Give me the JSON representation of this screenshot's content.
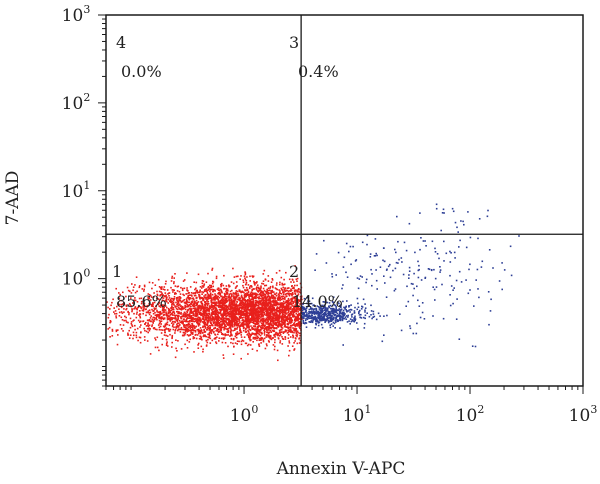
{
  "chart_data": {
    "type": "scatter",
    "title": "",
    "xlabel": "Annexin V-APC",
    "ylabel": "7-AAD",
    "x_scale": "log",
    "y_scale": "log",
    "xlim": [
      0.06,
      1000
    ],
    "ylim": [
      0.06,
      1000
    ],
    "x_ticks": [
      {
        "value": 1,
        "base": "10",
        "exp": "0"
      },
      {
        "value": 10,
        "base": "10",
        "exp": "1"
      },
      {
        "value": 100,
        "base": "10",
        "exp": "2"
      },
      {
        "value": 1000,
        "base": "10",
        "exp": "3"
      }
    ],
    "y_ticks": [
      {
        "value": 1,
        "base": "10",
        "exp": "0"
      },
      {
        "value": 10,
        "base": "10",
        "exp": "1"
      },
      {
        "value": 100,
        "base": "10",
        "exp": "2"
      },
      {
        "value": 1000,
        "base": "10",
        "exp": "3"
      }
    ],
    "gate": {
      "x": 3.2,
      "y": 3.2
    },
    "quadrants": [
      {
        "id": "4",
        "label": "4",
        "percent": "0.0%"
      },
      {
        "id": "3",
        "label": "3",
        "percent": "0.4%"
      },
      {
        "id": "1",
        "label": "1",
        "percent": "85.6%"
      },
      {
        "id": "2",
        "label": "2",
        "percent": "14.0%"
      }
    ],
    "populations": [
      {
        "quadrant": "1",
        "color": "#e8201c",
        "center": [
          1.2,
          0.42
        ],
        "spread": [
          0.55,
          0.16
        ],
        "share": 0.856
      },
      {
        "quadrant": "2",
        "color": "#2e3f96",
        "center": [
          4.4,
          0.4
        ],
        "spread": [
          0.2,
          0.06
        ],
        "share": 0.1
      },
      {
        "quadrant": "2",
        "color": "#2e3f96",
        "center": [
          30,
          1.1
        ],
        "spread": [
          0.45,
          0.32
        ],
        "share": 0.04
      },
      {
        "quadrant": "3",
        "color": "#2e3f96",
        "center": [
          55,
          5.2
        ],
        "spread": [
          0.2,
          0.1
        ],
        "share": 0.004
      }
    ]
  },
  "colors": {
    "frame": "#1a1a1a",
    "gate_line": "#1a1a1a",
    "negative_population": "#e8201c",
    "positive_population": "#2e3f96"
  }
}
